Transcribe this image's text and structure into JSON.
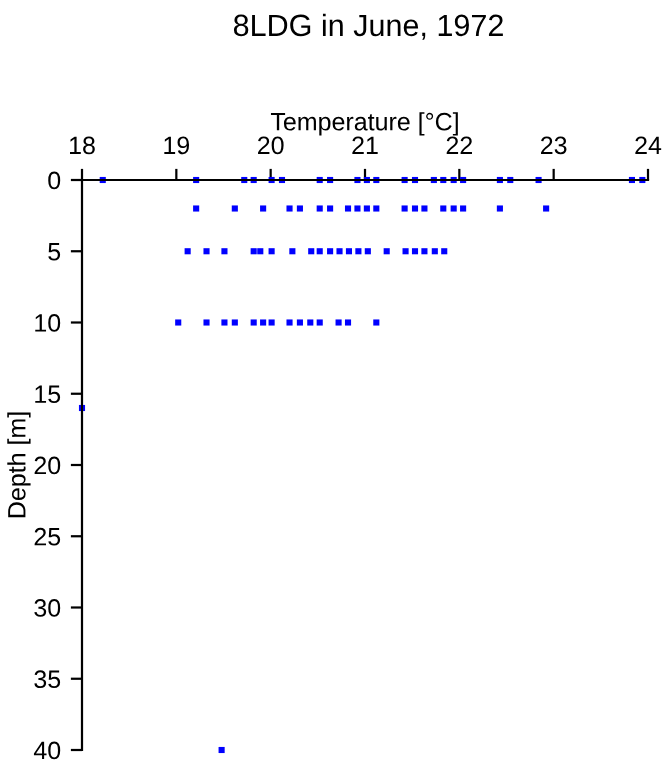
{
  "chart_data": {
    "type": "scatter",
    "title": "8LDG in June, 1972",
    "xlabel": "Temperature [°C]",
    "ylabel": "Depth [m]",
    "xlim": [
      18,
      24
    ],
    "xticks": [
      18,
      19,
      20,
      21,
      22,
      23,
      24
    ],
    "ylim": [
      40,
      0
    ],
    "yticks": [
      0,
      5,
      10,
      15,
      20,
      25,
      30,
      35,
      40
    ],
    "marker": "square",
    "grid": false,
    "series": [
      {
        "color": "#0000ff",
        "x": [
          18.22,
          19.21,
          19.72,
          19.82,
          20.01,
          20.12,
          20.52,
          20.63,
          20.92,
          21.02,
          21.12,
          21.42,
          21.53,
          21.73,
          21.83,
          21.94,
          22.04,
          22.43,
          22.54,
          22.84,
          23.83,
          23.94,
          19.21,
          19.62,
          19.92,
          20.2,
          20.31,
          20.52,
          20.63,
          20.82,
          20.92,
          21.02,
          21.12,
          21.42,
          21.53,
          21.63,
          21.83,
          21.94,
          22.04,
          22.43,
          22.92,
          19.12,
          19.32,
          19.51,
          19.82,
          19.89,
          20.01,
          20.23,
          20.43,
          20.52,
          20.63,
          20.73,
          20.83,
          20.93,
          21.03,
          21.23,
          21.43,
          21.53,
          21.63,
          21.74,
          21.84,
          19.02,
          19.32,
          19.51,
          19.62,
          19.82,
          19.92,
          20.01,
          20.2,
          20.31,
          20.42,
          20.52,
          20.72,
          20.82,
          21.12,
          18.0,
          19.48
        ],
        "values": [
          0,
          0,
          0,
          0,
          0,
          0,
          0,
          0,
          0,
          0,
          0,
          0,
          0,
          0,
          0,
          0,
          0,
          0,
          0,
          0,
          0,
          0,
          2,
          2,
          2,
          2,
          2,
          2,
          2,
          2,
          2,
          2,
          2,
          2,
          2,
          2,
          2,
          2,
          2,
          2,
          2,
          5,
          5,
          5,
          5,
          5,
          5,
          5,
          5,
          5,
          5,
          5,
          5,
          5,
          5,
          5,
          5,
          5,
          5,
          5,
          5,
          10,
          10,
          10,
          10,
          10,
          10,
          10,
          10,
          10,
          10,
          10,
          10,
          10,
          10,
          16,
          40
        ]
      }
    ]
  }
}
